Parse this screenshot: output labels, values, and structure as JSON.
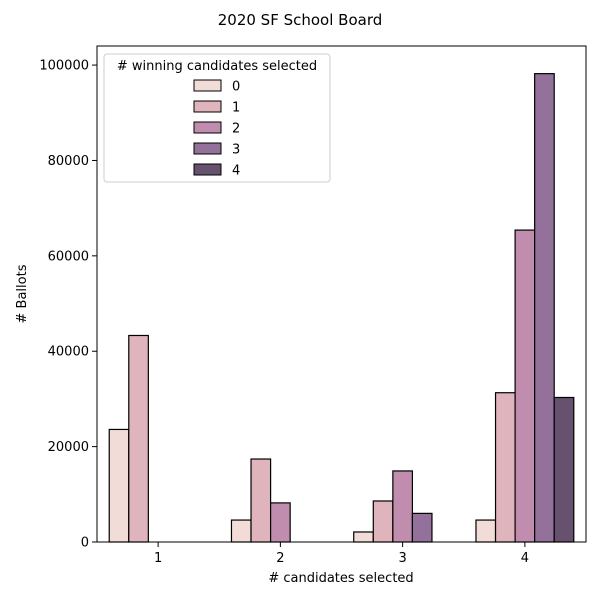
{
  "chart_data": {
    "type": "bar",
    "title": "2020 SF School Board",
    "xlabel": "# candidates selected",
    "ylabel": "# Ballots",
    "categories": [
      "1",
      "2",
      "3",
      "4"
    ],
    "ylim": [
      0,
      104000
    ],
    "yticks": [
      0,
      20000,
      40000,
      60000,
      80000,
      100000
    ],
    "grid": false,
    "legend": {
      "title": "# winning candidates selected",
      "placement": "top-left"
    },
    "series": [
      {
        "name": "0",
        "color": "#f2dcd7",
        "values": [
          23600,
          4600,
          2100,
          4600
        ]
      },
      {
        "name": "1",
        "color": "#e0b4bd",
        "values": [
          43300,
          17400,
          8600,
          31300
        ]
      },
      {
        "name": "2",
        "color": "#c08daf",
        "values": [
          0,
          8200,
          14900,
          65400
        ]
      },
      {
        "name": "3",
        "color": "#93719a",
        "values": [
          0,
          0,
          6000,
          98200
        ]
      },
      {
        "name": "4",
        "color": "#66526e",
        "values": [
          0,
          0,
          0,
          30300
        ]
      }
    ]
  }
}
